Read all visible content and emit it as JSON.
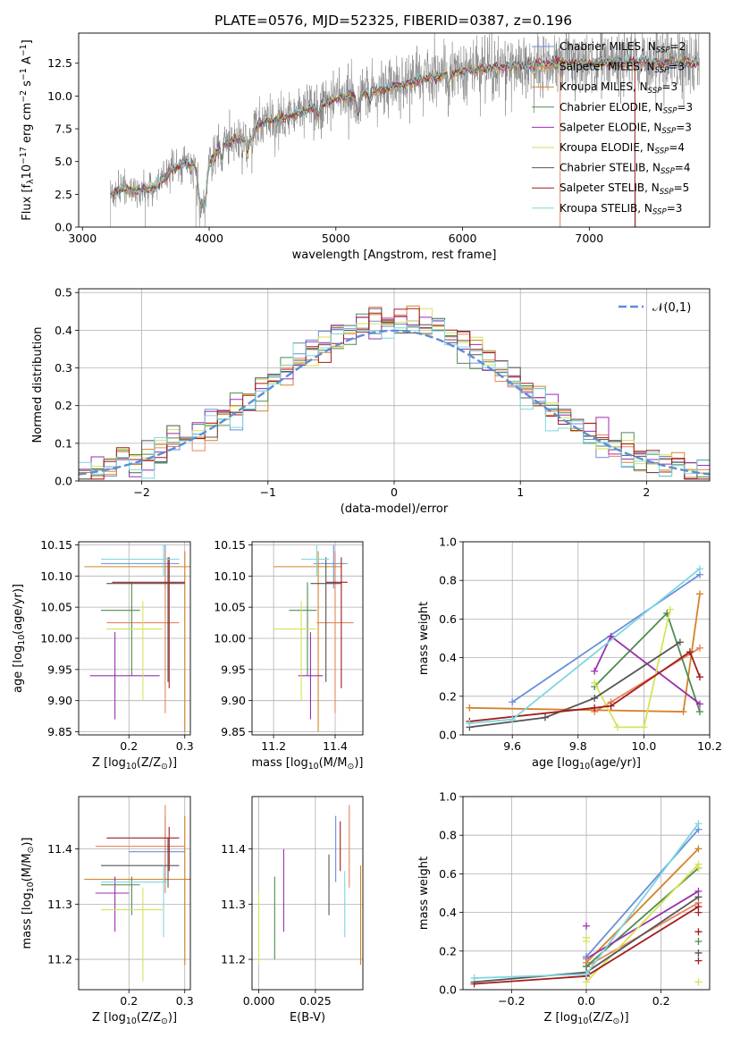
{
  "figure": {
    "title": "PLATE=0576, MJD=52325, FIBERID=0387, z=0.196"
  },
  "series_names": [
    "Chabrier MILES, N$_{SSP}$=2",
    "Salpeter MILES, N$_{SSP}$=3",
    "Kroupa MILES, N$_{SSP}$=3",
    "Chabrier ELODIE, N$_{SSP}$=3",
    "Salpeter ELODIE, N$_{SSP}$=3",
    "Kroupa ELODIE, N$_{SSP}$=4",
    "Chabrier STELIB, N$_{SSP}$=4",
    "Salpeter STELIB, N$_{SSP}$=5",
    "Kroupa STELIB, N$_{SSP}$=3"
  ],
  "colors": {
    "series": [
      "#6a8fd8",
      "#e8845e",
      "#d4832a",
      "#4f8b4f",
      "#9a2fb0",
      "#d6e25a",
      "#555555",
      "#a31c1c",
      "#7fd6e0"
    ],
    "spectrum": "#808080",
    "normal_curve": "#5b8ed6",
    "grid": "#b0b0b0"
  },
  "chart_data": [
    {
      "id": "spectrum",
      "type": "line",
      "title": "PLATE=0576, MJD=52325, FIBERID=0387, z=0.196",
      "xlabel": "wavelength [Angstrom, rest frame]",
      "ylabel": "Flux [f$_\\lambda$10$^{-17}$ erg cm$^{-2}$ s$^{-1}$ A$^{-1}$]",
      "xlim": [
        2970,
        7950
      ],
      "ylim": [
        0,
        14.8
      ],
      "xticks": [
        3000,
        4000,
        5000,
        6000,
        7000
      ],
      "yticks": [
        0.0,
        2.5,
        5.0,
        7.5,
        10.0,
        12.5
      ],
      "ytick_labels": [
        "0.0",
        "2.5",
        "5.0",
        "7.5",
        "10.0",
        "12.5"
      ],
      "grid": false,
      "legend": "upper right",
      "continuum": {
        "x": [
          3220,
          3300,
          3400,
          3500,
          3600,
          3700,
          3800,
          3900,
          4000,
          4100,
          4200,
          4300,
          4400,
          4500,
          4600,
          4700,
          4800,
          4900,
          5000,
          5200,
          5400,
          5600,
          5800,
          6000,
          6200,
          6400,
          6600,
          6800,
          7000,
          7200,
          7400,
          7600,
          7800
        ],
        "y": [
          2.5,
          2.9,
          2.8,
          2.9,
          3.3,
          4.4,
          4.9,
          4.6,
          5.0,
          6.2,
          6.7,
          7.0,
          8.0,
          8.2,
          8.4,
          8.8,
          9.1,
          9.4,
          9.9,
          10.3,
          10.7,
          11.2,
          11.6,
          12.0,
          12.2,
          12.4,
          12.5,
          12.6,
          12.6,
          12.7,
          12.7,
          12.7,
          12.6
        ]
      }
    },
    {
      "id": "residuals",
      "type": "line",
      "xlabel": "(data-model)/error",
      "ylabel": "Normed distribution",
      "xlim": [
        -2.5,
        2.5
      ],
      "ylim": [
        0,
        0.51
      ],
      "xticks": [
        -2,
        -1,
        0,
        1,
        2
      ],
      "xtick_labels": [
        "−2",
        "−1",
        "0",
        "1",
        "2"
      ],
      "yticks": [
        0.0,
        0.1,
        0.2,
        0.3,
        0.4,
        0.5
      ],
      "ytick_labels": [
        "0.0",
        "0.1",
        "0.2",
        "0.3",
        "0.4",
        "0.5"
      ],
      "grid": true,
      "legend_label": "$\\mathcal{N}(0,1)$",
      "legend": "upper right",
      "normal_curve": {
        "mean": 0,
        "sigma": 1
      },
      "histogram_bin_width": 0.1
    },
    {
      "id": "age_vs_Z",
      "type": "scatter",
      "xlabel": "Z [log$_{10}$(Z/Z$_\\odot$)]",
      "ylabel": "age  [log$_{10}$(age/yr)]",
      "xlim": [
        0.11,
        0.31
      ],
      "ylim": [
        9.845,
        10.155
      ],
      "xticks": [
        0.2,
        0.3
      ],
      "xtick_labels": [
        "0.2",
        "0.3"
      ],
      "yticks": [
        9.85,
        9.9,
        9.95,
        10.0,
        10.05,
        10.1,
        10.15
      ],
      "ytick_labels": [
        "9.85",
        "9.90",
        "9.95",
        "10.00",
        "10.05",
        "10.10",
        "10.15"
      ],
      "grid": true,
      "points": [
        {
          "series": 0,
          "x": 0.265,
          "xerr": [
            0.15,
            0.29
          ],
          "y": 10.12,
          "yerr": [
            10.08,
            10.15
          ]
        },
        {
          "series": 1,
          "x": 0.265,
          "xerr": [
            0.16,
            0.29
          ],
          "y": 10.025,
          "yerr": [
            9.88,
            10.14
          ]
        },
        {
          "series": 2,
          "x": 0.3,
          "xerr": [
            0.12,
            0.31
          ],
          "y": 10.115,
          "yerr": [
            9.85,
            10.14
          ]
        },
        {
          "series": 3,
          "x": 0.205,
          "xerr": [
            0.15,
            0.22
          ],
          "y": 10.045,
          "yerr": [
            9.94,
            10.09
          ]
        },
        {
          "series": 4,
          "x": 0.175,
          "xerr": [
            0.13,
            0.255
          ],
          "y": 9.94,
          "yerr": [
            9.87,
            10.01
          ]
        },
        {
          "series": 5,
          "x": 0.225,
          "xerr": [
            0.16,
            0.26
          ],
          "y": 10.015,
          "yerr": [
            9.9,
            10.06
          ]
        },
        {
          "series": 6,
          "x": 0.27,
          "xerr": [
            0.16,
            0.3
          ],
          "y": 10.088,
          "yerr": [
            9.93,
            10.13
          ]
        },
        {
          "series": 7,
          "x": 0.272,
          "xerr": [
            0.17,
            0.3
          ],
          "y": 10.09,
          "yerr": [
            9.92,
            10.13
          ]
        },
        {
          "series": 8,
          "x": 0.262,
          "xerr": [
            0.15,
            0.29
          ],
          "y": 10.127,
          "yerr": [
            10.1,
            10.15
          ]
        }
      ]
    },
    {
      "id": "age_vs_mass",
      "type": "scatter",
      "xlabel": "mass [log$_{10}$(M/M$_\\odot$)]",
      "xlim": [
        11.13,
        11.49
      ],
      "ylim": [
        9.845,
        10.155
      ],
      "xticks": [
        11.2,
        11.4
      ],
      "xtick_labels": [
        "11.2",
        "11.4"
      ],
      "yticks": [
        9.85,
        9.9,
        9.95,
        10.0,
        10.05,
        10.1,
        10.15
      ],
      "ytick_labels": [
        "9.85",
        "9.90",
        "9.95",
        "10.00",
        "10.05",
        "10.10",
        "10.15"
      ],
      "grid": true,
      "points": [
        {
          "series": 0,
          "x": 11.395,
          "xerr": [
            11.33,
            11.44
          ],
          "y": 10.12,
          "yerr": [
            10.08,
            10.15
          ]
        },
        {
          "series": 1,
          "x": 11.4,
          "xerr": [
            11.34,
            11.46
          ],
          "y": 10.025,
          "yerr": [
            9.88,
            10.14
          ]
        },
        {
          "series": 2,
          "x": 11.345,
          "xerr": [
            11.2,
            11.42
          ],
          "y": 10.115,
          "yerr": [
            9.85,
            10.14
          ]
        },
        {
          "series": 3,
          "x": 11.31,
          "xerr": [
            11.25,
            11.34
          ],
          "y": 10.045,
          "yerr": [
            9.94,
            10.09
          ]
        },
        {
          "series": 4,
          "x": 11.32,
          "xerr": [
            11.28,
            11.36
          ],
          "y": 9.94,
          "yerr": [
            9.87,
            10.01
          ]
        },
        {
          "series": 5,
          "x": 11.29,
          "xerr": [
            11.2,
            11.34
          ],
          "y": 10.015,
          "yerr": [
            9.9,
            10.06
          ]
        },
        {
          "series": 6,
          "x": 11.37,
          "xerr": [
            11.32,
            11.42
          ],
          "y": 10.088,
          "yerr": [
            9.93,
            10.13
          ]
        },
        {
          "series": 7,
          "x": 11.42,
          "xerr": [
            11.37,
            11.44
          ],
          "y": 10.09,
          "yerr": [
            9.92,
            10.13
          ]
        },
        {
          "series": 8,
          "x": 11.34,
          "xerr": [
            11.29,
            11.38
          ],
          "y": 10.127,
          "yerr": [
            10.1,
            10.15
          ]
        }
      ]
    },
    {
      "id": "weight_vs_age",
      "type": "line",
      "xlabel": "age  [log$_{10}$(age/yr)]",
      "ylabel": "mass weight",
      "xlim": [
        9.45,
        10.2
      ],
      "ylim": [
        0,
        1.0
      ],
      "xticks": [
        9.6,
        9.8,
        10.0,
        10.2
      ],
      "xtick_labels": [
        "9.6",
        "9.8",
        "10.0",
        "10.2"
      ],
      "yticks": [
        0.0,
        0.2,
        0.4,
        0.6,
        0.8,
        1.0
      ],
      "ytick_labels": [
        "0.0",
        "0.2",
        "0.4",
        "0.6",
        "0.8",
        "1.0"
      ],
      "grid": true,
      "series": [
        {
          "series": 0,
          "x": [
            9.6,
            10.17
          ],
          "y": [
            0.17,
            0.83
          ]
        },
        {
          "series": 1,
          "x": [
            9.85,
            9.9,
            10.17
          ],
          "y": [
            0.12,
            0.17,
            0.45
          ]
        },
        {
          "series": 2,
          "x": [
            9.47,
            10.12,
            10.17
          ],
          "y": [
            0.14,
            0.12,
            0.73
          ]
        },
        {
          "series": 3,
          "x": [
            9.85,
            10.07,
            10.17
          ],
          "y": [
            0.25,
            0.63,
            0.12
          ]
        },
        {
          "series": 4,
          "x": [
            9.85,
            9.9,
            10.17
          ],
          "y": [
            0.33,
            0.51,
            0.16
          ]
        },
        {
          "series": 5,
          "x": [
            9.85,
            9.92,
            10.0,
            10.08
          ],
          "y": [
            0.27,
            0.04,
            0.04,
            0.65
          ]
        },
        {
          "series": 6,
          "x": [
            9.47,
            9.7,
            9.85,
            10.11
          ],
          "y": [
            0.04,
            0.09,
            0.19,
            0.48
          ]
        },
        {
          "series": 7,
          "x": [
            9.47,
            9.85,
            9.9,
            10.14,
            10.17
          ],
          "y": [
            0.07,
            0.14,
            0.15,
            0.43,
            0.3
          ]
        },
        {
          "series": 8,
          "x": [
            9.47,
            9.6,
            10.17
          ],
          "y": [
            0.06,
            0.08,
            0.86
          ]
        }
      ]
    },
    {
      "id": "mass_vs_Z",
      "type": "scatter",
      "xlabel": "Z [log$_{10}$(Z/Z$_\\odot$)]",
      "ylabel": "mass [log$_{10}$(M/M$_\\odot$)]",
      "xlim": [
        0.11,
        0.31
      ],
      "ylim": [
        11.145,
        11.495
      ],
      "xticks": [
        0.2,
        0.3
      ],
      "xtick_labels": [
        "0.2",
        "0.3"
      ],
      "yticks": [
        11.2,
        11.3,
        11.4
      ],
      "ytick_labels": [
        "11.2",
        "11.3",
        "11.4"
      ],
      "grid": true,
      "points": [
        {
          "series": 0,
          "x": 0.265,
          "xerr": [
            0.2,
            0.3
          ],
          "y": 11.395,
          "yerr": [
            11.34,
            11.46
          ]
        },
        {
          "series": 1,
          "x": 0.265,
          "xerr": [
            0.14,
            0.3
          ],
          "y": 11.405,
          "yerr": [
            11.32,
            11.48
          ]
        },
        {
          "series": 2,
          "x": 0.3,
          "xerr": [
            0.12,
            0.31
          ],
          "y": 11.345,
          "yerr": [
            11.19,
            11.46
          ]
        },
        {
          "series": 3,
          "x": 0.205,
          "xerr": [
            0.15,
            0.22
          ],
          "y": 11.335,
          "yerr": [
            11.28,
            11.35
          ]
        },
        {
          "series": 4,
          "x": 0.175,
          "xerr": [
            0.14,
            0.2
          ],
          "y": 11.32,
          "yerr": [
            11.25,
            11.35
          ]
        },
        {
          "series": 5,
          "x": 0.225,
          "xerr": [
            0.15,
            0.26
          ],
          "y": 11.29,
          "yerr": [
            11.16,
            11.33
          ]
        },
        {
          "series": 6,
          "x": 0.27,
          "xerr": [
            0.15,
            0.29
          ],
          "y": 11.37,
          "yerr": [
            11.33,
            11.42
          ]
        },
        {
          "series": 7,
          "x": 0.272,
          "xerr": [
            0.16,
            0.29
          ],
          "y": 11.42,
          "yerr": [
            11.36,
            11.44
          ]
        },
        {
          "series": 8,
          "x": 0.262,
          "xerr": [
            0.15,
            0.27
          ],
          "y": 11.34,
          "yerr": [
            11.24,
            11.37
          ]
        }
      ]
    },
    {
      "id": "mass_vs_ebv",
      "type": "scatter",
      "xlabel": "E(B-V)",
      "xlim": [
        -0.003,
        0.046
      ],
      "ylim": [
        11.145,
        11.495
      ],
      "xticks": [
        0.0,
        0.025
      ],
      "xtick_labels": [
        "0.000",
        "0.025"
      ],
      "yticks": [
        11.2,
        11.3,
        11.4
      ],
      "ytick_labels": [
        "11.2",
        "11.3",
        "11.4"
      ],
      "grid": true,
      "points": [
        {
          "series": 0,
          "x": 0.034,
          "y": 11.395,
          "yerr": [
            11.34,
            11.46
          ]
        },
        {
          "series": 1,
          "x": 0.04,
          "y": 11.405,
          "yerr": [
            11.33,
            11.48
          ]
        },
        {
          "series": 2,
          "x": 0.045,
          "y": 11.3,
          "yerr": [
            11.19,
            11.37
          ]
        },
        {
          "series": 3,
          "x": 0.007,
          "y": 11.29,
          "yerr": [
            11.2,
            11.35
          ]
        },
        {
          "series": 4,
          "x": 0.011,
          "y": 11.33,
          "yerr": [
            11.25,
            11.4
          ]
        },
        {
          "series": 5,
          "x": 0.0,
          "y": 11.28,
          "yerr": [
            11.19,
            11.32
          ]
        },
        {
          "series": 6,
          "x": 0.031,
          "y": 11.34,
          "yerr": [
            11.28,
            11.39
          ]
        },
        {
          "series": 7,
          "x": 0.036,
          "y": 11.405,
          "yerr": [
            11.36,
            11.45
          ]
        },
        {
          "series": 8,
          "x": 0.038,
          "y": 11.3,
          "yerr": [
            11.24,
            11.36
          ]
        }
      ]
    },
    {
      "id": "weight_vs_Z",
      "type": "line",
      "xlabel": "Z [log$_{10}$(Z/Z$_\\odot$)]",
      "ylabel": "mass weight",
      "xlim": [
        -0.33,
        0.33
      ],
      "ylim": [
        0,
        1.0
      ],
      "xticks": [
        -0.2,
        0.0,
        0.2
      ],
      "xtick_labels": [
        "−0.2",
        "0.0",
        "0.2"
      ],
      "yticks": [
        0.0,
        0.2,
        0.4,
        0.6,
        0.8,
        1.0
      ],
      "ytick_labels": [
        "0.0",
        "0.2",
        "0.4",
        "0.6",
        "0.8",
        "1.0"
      ],
      "grid": true,
      "series": [
        {
          "series": 0,
          "x": [
            0.0,
            0.3
          ],
          "y": [
            0.17,
            0.83
          ]
        },
        {
          "series": 1,
          "x": [
            0.0,
            0.3
          ],
          "y": [
            0.12,
            0.45
          ]
        },
        {
          "series": 2,
          "x": [
            0.0,
            0.3
          ],
          "y": [
            0.14,
            0.73
          ]
        },
        {
          "series": 3,
          "x": [
            0.0,
            0.3
          ],
          "y": [
            0.12,
            0.63
          ]
        },
        {
          "series": 4,
          "x": [
            0.0,
            0.3
          ],
          "y": [
            0.16,
            0.51
          ]
        },
        {
          "series": 5,
          "x": [
            0.0,
            0.3
          ],
          "y": [
            0.04,
            0.65
          ]
        },
        {
          "series": 6,
          "x": [
            -0.3,
            0.0,
            0.3
          ],
          "y": [
            0.04,
            0.09,
            0.48
          ]
        },
        {
          "series": 7,
          "x": [
            -0.3,
            0.0,
            0.3
          ],
          "y": [
            0.03,
            0.07,
            0.43
          ]
        },
        {
          "series": 8,
          "x": [
            -0.3,
            0.0,
            0.3
          ],
          "y": [
            0.06,
            0.08,
            0.86
          ]
        }
      ],
      "extra_markers": [
        {
          "series": 4,
          "x": 0.0,
          "y": 0.33
        },
        {
          "series": 5,
          "x": 0.0,
          "y": 0.27
        },
        {
          "series": 5,
          "x": 0.0,
          "y": 0.25
        },
        {
          "series": 5,
          "x": 0.3,
          "y": 0.04
        },
        {
          "series": 5,
          "x": 0.3,
          "y": 0.63
        },
        {
          "series": 1,
          "x": 0.0,
          "y": 0.16
        },
        {
          "series": 7,
          "x": 0.3,
          "y": 0.3
        },
        {
          "series": 7,
          "x": 0.3,
          "y": 0.15
        },
        {
          "series": 7,
          "x": 0.3,
          "y": 0.4
        },
        {
          "series": 6,
          "x": 0.3,
          "y": 0.19
        },
        {
          "series": 8,
          "x": 0.0,
          "y": 0.08
        },
        {
          "series": 3,
          "x": 0.3,
          "y": 0.25
        },
        {
          "series": 0,
          "x": 0.0,
          "y": 0.17
        }
      ]
    }
  ]
}
